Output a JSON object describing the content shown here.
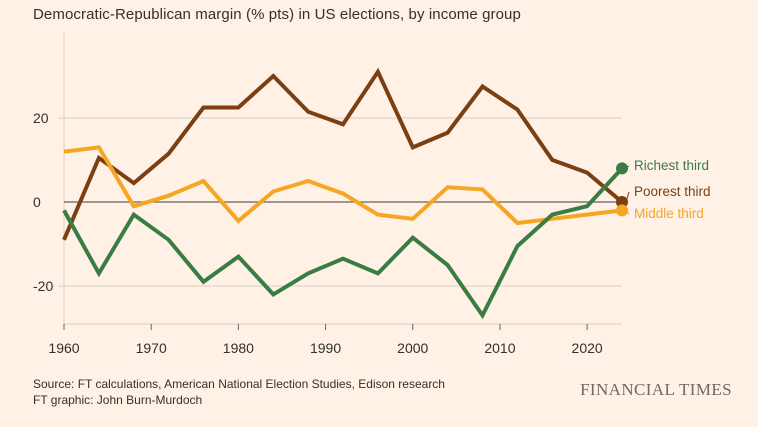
{
  "title": "Democratic-Republican margin (% pts) in US elections, by income group",
  "footer": {
    "source": "Source: FT calculations, American National Election Studies, Edison research",
    "graphic": "FT graphic: John Burn-Murdoch"
  },
  "brand": "FINANCIAL TIMES",
  "colors": {
    "background": "#fff1e5",
    "richest": "#3a7d44",
    "poorest": "#7b3f12",
    "middle": "#f5a623",
    "grid": "#d9cfc4",
    "zero_line": "#66605c"
  },
  "chart_data": {
    "type": "line",
    "title": "Democratic-Republican margin (% pts) in US elections, by income group",
    "xlim": [
      1960,
      2024
    ],
    "ylim": [
      -30,
      35
    ],
    "x_ticks": [
      1960,
      1970,
      1980,
      1990,
      2000,
      2010,
      2020
    ],
    "x_tick_labels": [
      "1960",
      "1970",
      "1980",
      "1990",
      "2000",
      "2010",
      "2020"
    ],
    "y_ticks": [
      20,
      0,
      -20
    ],
    "y_tick_labels": [
      "20",
      "0",
      "-20"
    ],
    "grid": "horizontal",
    "legend": "direct labels at line ends (right)",
    "x": [
      1960,
      1964,
      1968,
      1972,
      1976,
      1980,
      1984,
      1988,
      1992,
      1996,
      2000,
      2004,
      2008,
      2012,
      2016,
      2020,
      2024
    ],
    "series": [
      {
        "name": "Richest third",
        "color_key": "richest",
        "values": [
          -2,
          -17,
          -3,
          -9,
          -19,
          -13,
          -22,
          -17,
          -13.5,
          -17,
          -8.5,
          -15,
          -27,
          -10.5,
          -3,
          -1,
          8
        ]
      },
      {
        "name": "Poorest third",
        "color_key": "poorest",
        "values": [
          -9,
          10.5,
          4.5,
          11.5,
          22.5,
          22.5,
          30,
          21.5,
          18.5,
          31,
          13,
          16.5,
          27.5,
          22,
          10,
          7,
          0
        ]
      },
      {
        "name": "Middle third",
        "color_key": "middle",
        "values": [
          12,
          13,
          -1,
          1.5,
          5,
          -4.5,
          2.5,
          5,
          2,
          -3,
          -4,
          3.5,
          3,
          -5,
          -4,
          -3,
          -2
        ]
      }
    ]
  }
}
